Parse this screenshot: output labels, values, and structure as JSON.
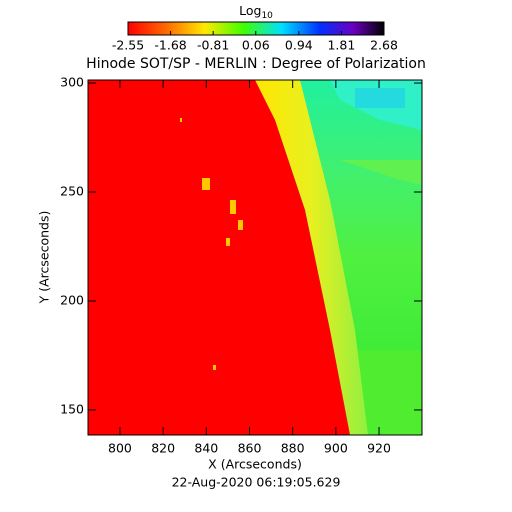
{
  "chart_data": {
    "type": "image",
    "title": "Hinode SOT/SP - MERLIN : Degree of Polarization",
    "colorbar_label": "Log",
    "colorbar_label_subscript": "10",
    "clim": [
      -2.55,
      2.68
    ],
    "cticks": [
      -2.55,
      -1.68,
      -0.81,
      0.06,
      0.94,
      1.81,
      2.68
    ],
    "x_label": "X (Arcseconds)",
    "y_label": "Y (Arcseconds)",
    "date": "22-Aug-2020 06:19:05.629",
    "xlim": [
      785.2,
      939.9
    ],
    "ylim": [
      138.5,
      301.4
    ],
    "xticks": [
      800,
      820,
      840,
      860,
      880,
      900,
      920
    ],
    "yticks": [
      150,
      200,
      250,
      300
    ]
  }
}
